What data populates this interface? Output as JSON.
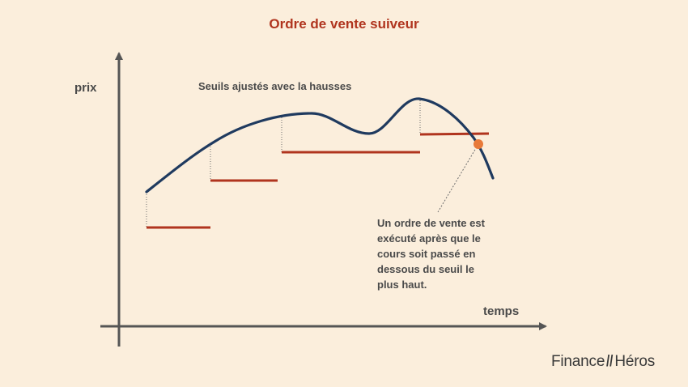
{
  "title": "Ordre de vente suiveur",
  "y_axis_label": "prix",
  "x_axis_label": "temps",
  "annotation_thresholds": "Seuils ajustés avec la hausses",
  "annotation_execution": [
    "Un ordre de vente est",
    "exécuté après que le",
    "cours soit passé en",
    "dessous du seuil le",
    "plus haut."
  ],
  "brand": {
    "left": "Finance",
    "separator": "//",
    "right": "Héros"
  },
  "colors": {
    "background": "#FBEEDC",
    "price_curve": "#1F3A5F",
    "threshold": "#B0341E",
    "execution_point": "#E87A3A",
    "axis": "#555555",
    "title": "#B0341E"
  },
  "diagram": {
    "trend": "price rises, then falls below the highest threshold",
    "thresholds_count": 4,
    "execution_marker": "orange dot where price crosses below the last threshold"
  }
}
